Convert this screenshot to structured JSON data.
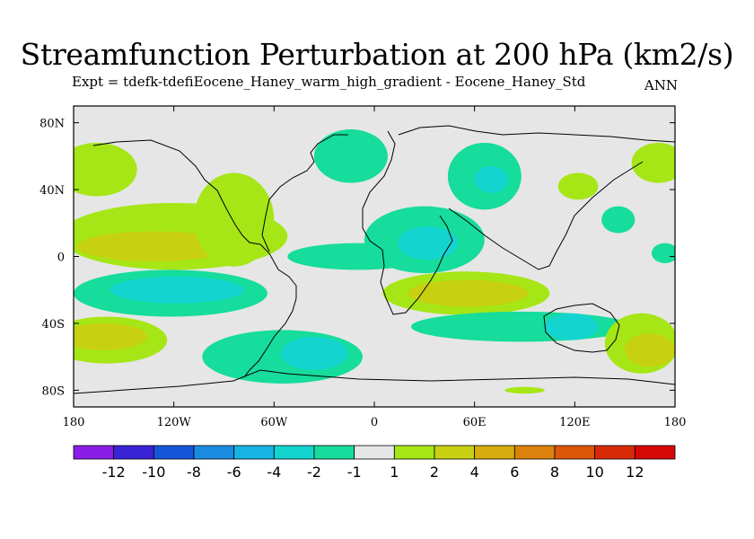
{
  "chart_data": {
    "type": "filled-contour-map",
    "title": "Streamfunction Perturbation at 200 hPa (km2/s)",
    "subtitle": "Expt = tdefk-tdefiEocene_Haney_warm_high_gradient - Eocene_Haney_Std",
    "season_label": "ANN",
    "projection": "cylindrical-equidistant",
    "lon_range": [
      -180,
      180
    ],
    "lat_range": [
      -90,
      90
    ],
    "x_ticks": [
      {
        "lon": -180,
        "label": "180"
      },
      {
        "lon": -120,
        "label": "120W"
      },
      {
        "lon": -60,
        "label": "60W"
      },
      {
        "lon": 0,
        "label": "0"
      },
      {
        "lon": 60,
        "label": "60E"
      },
      {
        "lon": 120,
        "label": "120E"
      },
      {
        "lon": 180,
        "label": "180"
      }
    ],
    "y_ticks": [
      {
        "lat": 80,
        "label": "80N"
      },
      {
        "lat": 40,
        "label": "40N"
      },
      {
        "lat": 0,
        "label": "0"
      },
      {
        "lat": -40,
        "label": "40S"
      },
      {
        "lat": -80,
        "label": "80S"
      }
    ],
    "contour_levels": [
      "-12",
      "-10",
      "-8",
      "-6",
      "-4",
      "-2",
      "-1",
      "1",
      "2",
      "4",
      "6",
      "8",
      "10",
      "12"
    ],
    "colorbar_colors": [
      "#8a1ee6",
      "#3a22d6",
      "#1456d8",
      "#1a8ce0",
      "#16b4e2",
      "#14d4d0",
      "#16dc9c",
      "#e6e6e6",
      "#a6e616",
      "#c8d012",
      "#d6ac0e",
      "#dc820c",
      "#dc560a",
      "#d82a08",
      "#d60808"
    ],
    "features": [
      {
        "name": "north-pacific-positive",
        "level": "1 to 2",
        "color": "#a6e616",
        "center": [
          -166,
          52
        ],
        "radius": [
          24,
          16
        ]
      },
      {
        "name": "tropical-pacific-positive-outer",
        "level": "1 to 2",
        "color": "#a6e616",
        "center": [
          -120,
          12
        ],
        "radius": [
          68,
          20
        ]
      },
      {
        "name": "tropical-pacific-positive-inner",
        "level": "2 to 4",
        "color": "#c8d012",
        "center": [
          -132,
          6
        ],
        "radius": [
          46,
          9
        ]
      },
      {
        "name": "americas-positive",
        "level": "1 to 2",
        "color": "#a6e616",
        "center": [
          -84,
          22
        ],
        "radius": [
          24,
          28
        ]
      },
      {
        "name": "south-pacific-negative-outer",
        "level": "-1 to -2",
        "color": "#16dc9c",
        "center": [
          -122,
          -22
        ],
        "radius": [
          58,
          14
        ]
      },
      {
        "name": "south-pacific-negative-inner",
        "level": "-2 to -4",
        "color": "#14d4d0",
        "center": [
          -118,
          -20
        ],
        "radius": [
          40,
          8
        ]
      },
      {
        "name": "southern-ocean-positive-outer",
        "level": "1 to 2",
        "color": "#a6e616",
        "center": [
          -160,
          -50
        ],
        "radius": [
          36,
          14
        ]
      },
      {
        "name": "southern-ocean-positive-inner",
        "level": "2 to 4",
        "color": "#c8d012",
        "center": [
          -162,
          -48
        ],
        "radius": [
          26,
          8
        ]
      },
      {
        "name": "south-atlantic-negative-outer",
        "level": "-1 to -2",
        "color": "#16dc9c",
        "center": [
          -55,
          -60
        ],
        "radius": [
          48,
          16
        ]
      },
      {
        "name": "south-atlantic-negative-inner",
        "level": "-2 to -4",
        "color": "#14d4d0",
        "center": [
          -36,
          -58
        ],
        "radius": [
          20,
          10
        ]
      },
      {
        "name": "atlantic-tropics-negative",
        "level": "-1 to -2",
        "color": "#16dc9c",
        "center": [
          -10,
          0
        ],
        "radius": [
          42,
          8
        ]
      },
      {
        "name": "africa-negative-outer",
        "level": "-1 to -2",
        "color": "#16dc9c",
        "center": [
          30,
          10
        ],
        "radius": [
          36,
          20
        ]
      },
      {
        "name": "africa-negative-inner",
        "level": "-2 to -4",
        "color": "#14d4d0",
        "center": [
          32,
          8
        ],
        "radius": [
          18,
          10
        ]
      },
      {
        "name": "indian-ocean-positive-outer",
        "level": "1 to 2",
        "color": "#a6e616",
        "center": [
          55,
          -22
        ],
        "radius": [
          50,
          13
        ]
      },
      {
        "name": "indian-ocean-positive-inner",
        "level": "2 to 4",
        "color": "#c8d012",
        "center": [
          56,
          -22
        ],
        "radius": [
          36,
          8
        ]
      },
      {
        "name": "southern-indian-negative",
        "level": "-1 to -2",
        "color": "#16dc9c",
        "center": [
          88,
          -42
        ],
        "radius": [
          66,
          9
        ]
      },
      {
        "name": "australia-negative",
        "level": "-2 to -4",
        "color": "#14d4d0",
        "center": [
          118,
          -42
        ],
        "radius": [
          16,
          8
        ]
      },
      {
        "name": "southwest-pacific-positive-outer",
        "level": "1 to 2",
        "color": "#a6e616",
        "center": [
          160,
          -52
        ],
        "radius": [
          22,
          18
        ]
      },
      {
        "name": "southwest-pacific-positive-inner",
        "level": "2 to 4",
        "color": "#c8d012",
        "center": [
          165,
          -56
        ],
        "radius": [
          15,
          10
        ]
      },
      {
        "name": "europe-negative",
        "level": "-1 to -2",
        "color": "#16dc9c",
        "center": [
          -14,
          60
        ],
        "radius": [
          22,
          16
        ]
      },
      {
        "name": "asia-negative-outer",
        "level": "-1 to -2",
        "color": "#16dc9c",
        "center": [
          66,
          48
        ],
        "radius": [
          22,
          20
        ]
      },
      {
        "name": "asia-negative-inner",
        "level": "-2 to -4",
        "color": "#14d4d0",
        "center": [
          70,
          46
        ],
        "radius": [
          10,
          8
        ]
      },
      {
        "name": "east-asia-positive",
        "level": "1 to 2",
        "color": "#a6e616",
        "center": [
          122,
          42
        ],
        "radius": [
          12,
          8
        ]
      },
      {
        "name": "north-pacific-negative",
        "level": "-1 to -2",
        "color": "#16dc9c",
        "center": [
          146,
          22
        ],
        "radius": [
          10,
          8
        ]
      },
      {
        "name": "west-pacific-positive",
        "level": "1 to 2",
        "color": "#a6e616",
        "center": [
          170,
          56
        ],
        "radius": [
          16,
          12
        ]
      },
      {
        "name": "date-line-tropical-negative",
        "level": "-1 to -2",
        "color": "#16dc9c",
        "center": [
          174,
          2
        ],
        "radius": [
          8,
          6
        ]
      },
      {
        "name": "antarctic-positive",
        "level": "1 to 2",
        "color": "#a6e616",
        "center": [
          90,
          -80
        ],
        "radius": [
          12,
          2
        ]
      }
    ]
  }
}
